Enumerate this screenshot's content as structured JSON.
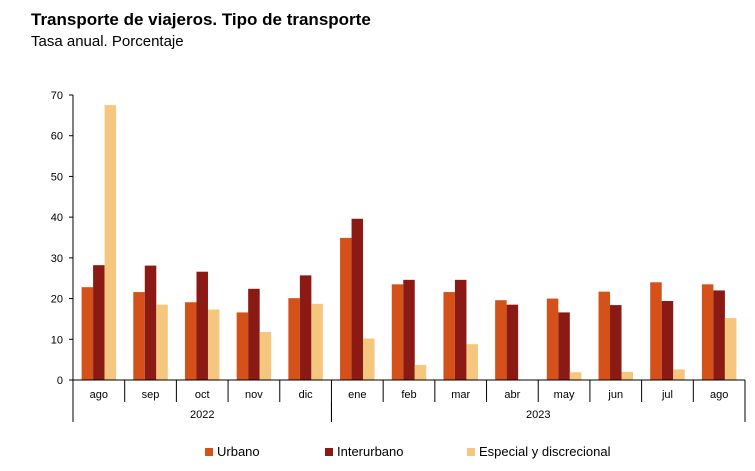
{
  "chart_data": {
    "type": "bar",
    "title": "Transporte de viajeros. Tipo de transporte",
    "subtitle": "Tasa anual. Porcentaje",
    "categories": [
      "ago",
      "sep",
      "oct",
      "nov",
      "dic",
      "ene",
      "feb",
      "mar",
      "abr",
      "may",
      "jun",
      "jul",
      "ago"
    ],
    "groups": [
      {
        "label": "2022",
        "start": 0,
        "end": 4
      },
      {
        "label": "2023",
        "start": 5,
        "end": 12
      }
    ],
    "ylim": [
      0,
      70
    ],
    "yticks": [
      0,
      10,
      20,
      30,
      40,
      50,
      60,
      70
    ],
    "grid": false,
    "legend_position": "bottom",
    "series": [
      {
        "name": "Urbano",
        "color": "#d4521a",
        "values": [
          22.8,
          21.6,
          19.1,
          16.6,
          20.1,
          34.9,
          23.5,
          21.6,
          19.6,
          20.0,
          21.7,
          24.0,
          23.5
        ]
      },
      {
        "name": "Interurbano",
        "color": "#8b1a14",
        "values": [
          28.2,
          28.1,
          26.6,
          22.4,
          25.7,
          39.6,
          24.6,
          24.6,
          18.5,
          16.6,
          18.4,
          19.4,
          22.0
        ]
      },
      {
        "name": "Especial y discrecional",
        "color": "#f5c67d",
        "values": [
          67.5,
          18.5,
          17.3,
          11.8,
          18.7,
          10.2,
          3.7,
          8.8,
          0.0,
          1.9,
          2.0,
          2.6,
          15.2
        ]
      }
    ]
  }
}
